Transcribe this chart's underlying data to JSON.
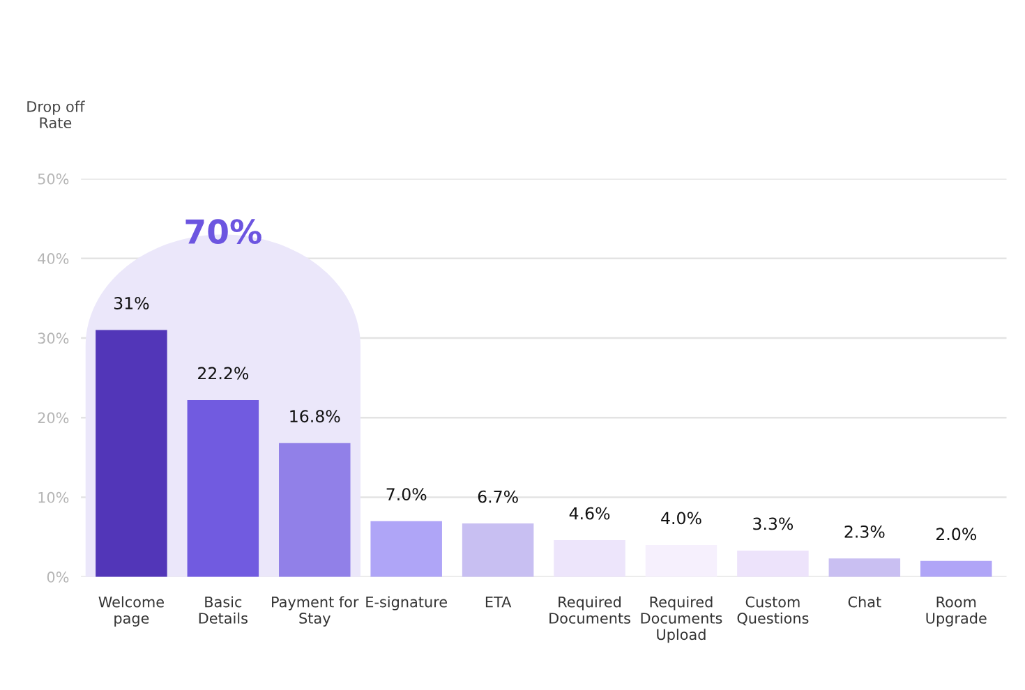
{
  "chart_data": {
    "type": "bar",
    "ylabel": "Drop off\nRate",
    "categories": [
      "Welcome\npage",
      "Basic\nDetails",
      "Payment for\nStay",
      "E-signature",
      "ETA",
      "Required\nDocuments",
      "Required\nDocuments\nUpload",
      "Custom\nQuestions",
      "Chat",
      "Room\nUpgrade"
    ],
    "values": [
      31,
      22.2,
      16.8,
      7.0,
      6.7,
      4.6,
      4.0,
      3.3,
      2.3,
      2.0
    ],
    "colors": [
      "#5236b8",
      "#715be0",
      "#9180e8",
      "#afa5f7",
      "#c8bff2",
      "#ede5fb",
      "#f6f0fd",
      "#ede3fb",
      "#c9bff2",
      "#b0a5f7"
    ],
    "value_labels": [
      "31%",
      "22.2%",
      "16.8%",
      "7.0%",
      "6.7%",
      "4.6%",
      "4.0%",
      "3.3%",
      "2.3%",
      "2.0%"
    ],
    "ylim": [
      0,
      50
    ],
    "yticks": [
      {
        "value": 0,
        "label": "0%"
      },
      {
        "value": 10,
        "label": "10%"
      },
      {
        "value": 20,
        "label": "20%"
      },
      {
        "value": 30,
        "label": "30%"
      },
      {
        "value": 40,
        "label": "40%"
      },
      {
        "value": 50,
        "label": "50%"
      }
    ],
    "grid": "y",
    "annotations": [
      "70%"
    ]
  }
}
